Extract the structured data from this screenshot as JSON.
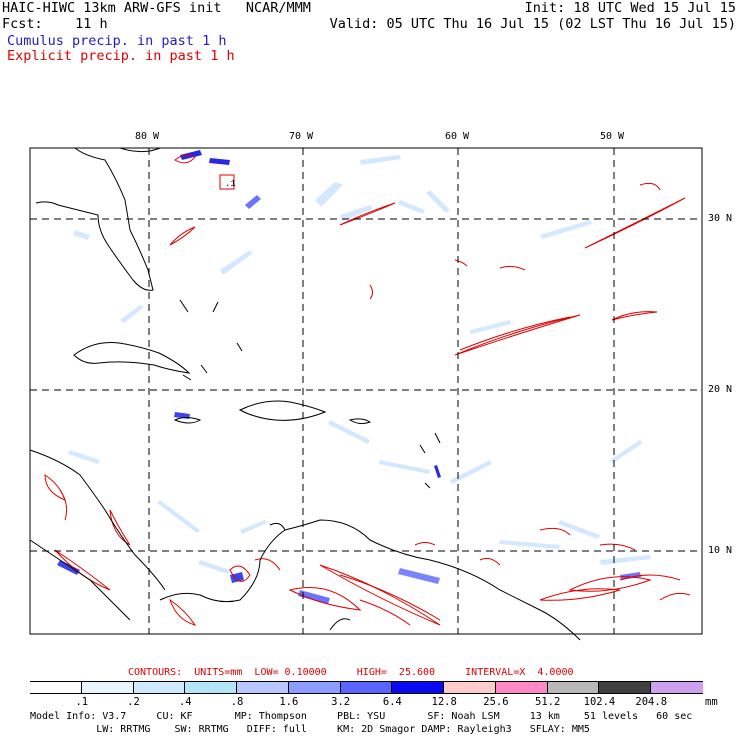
{
  "header": {
    "title": "HAIC-HIWC 13km ARW-GFS init   NCAR/MMM",
    "init": "Init: 18 UTC Wed 15 Jul 15",
    "fcst": "Fcst:    11 h",
    "valid": "Valid: 05 UTC Thu 16 Jul 15 (02 LST Thu 16 Jul 15)",
    "legend_cumulus": "Cumulus precip. in past 1 h",
    "legend_explicit": "Explicit precip. in past 1 h"
  },
  "map": {
    "lon_labels": [
      "80 W",
      "70 W",
      "60 W",
      "50 W"
    ],
    "lat_labels": [
      "30 N",
      "20 N",
      "10 N"
    ],
    "box_label": ".1",
    "colors": {
      "grid": "#000000",
      "coast": "#000000",
      "contour": "#e00000",
      "precip_light": "#c8e4ff",
      "precip_med": "#9aa8ff",
      "precip_heavy": "#2828e8"
    }
  },
  "contours": {
    "text": "CONTOURS:  UNITS=mm  LOW= 0.10000     HIGH=  25.600     INTERVAL=X  4.0000"
  },
  "colorbar": {
    "labels": [
      ".1",
      ".2",
      ".4",
      ".8",
      "1.6",
      "3.2",
      "6.4",
      "12.8",
      "25.6",
      "51.2",
      "102.4",
      "204.8"
    ],
    "unit": "mm",
    "colors": [
      "#ffffff",
      "#e8f6ff",
      "#cfeaff",
      "#b4e4f8",
      "#b8c8ff",
      "#8c9cff",
      "#5a64ff",
      "#0a0af0",
      "#ffcccc",
      "#ff88c8",
      "#b8b8b8",
      "#404040",
      "#d0a0f0"
    ]
  },
  "model_info": {
    "line1": "Model Info: V3.7     CU: KF       MP: Thompson     PBL: YSU       SF: Noah LSM     13 km    51 levels   60 sec",
    "line2": "           LW: RRTMG    SW: RRTMG   DIFF: full     KM: 2D Smagor DAMP: Rayleigh3   SFLAY: MM5"
  }
}
